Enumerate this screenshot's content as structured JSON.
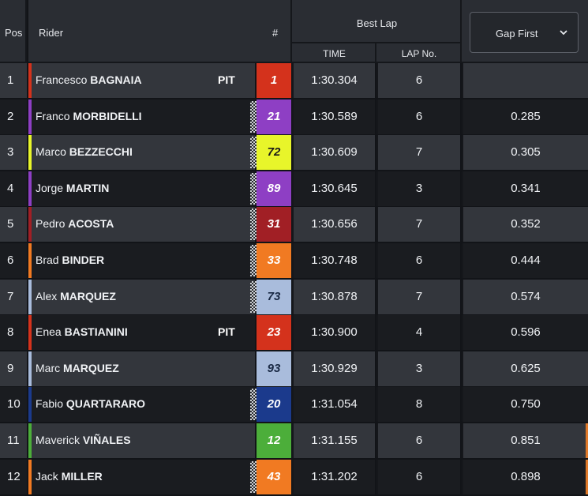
{
  "header": {
    "pos": "Pos",
    "rider": "Rider",
    "number": "#",
    "best_lap": "Best Lap",
    "time": "TIME",
    "lap_no": "LAP No.",
    "gap_selector": "Gap First"
  },
  "colors": {
    "header_bg": "#2a2d33",
    "row_odd": "#33363c",
    "row_even": "#1a1c20"
  },
  "rows": [
    {
      "pos": "1",
      "first": "Francesco",
      "last": "BAGNAIA",
      "pit": "PIT",
      "num": "1",
      "num_bg": "#d4321c",
      "num_fg": "#ffffff",
      "stripe": "#d4321c",
      "flag": false,
      "time": "1:30.304",
      "lap": "6",
      "gap": ""
    },
    {
      "pos": "2",
      "first": "Franco",
      "last": "MORBIDELLI",
      "pit": "",
      "num": "21",
      "num_bg": "#8e3fc4",
      "num_fg": "#ffffff",
      "stripe": "#8e3fc4",
      "flag": true,
      "time": "1:30.589",
      "lap": "6",
      "gap": "0.285"
    },
    {
      "pos": "3",
      "first": "Marco",
      "last": "BEZZECCHI",
      "pit": "",
      "num": "72",
      "num_bg": "#e8f52a",
      "num_fg": "#1a1a1a",
      "stripe": "#e8f52a",
      "flag": true,
      "time": "1:30.609",
      "lap": "7",
      "gap": "0.305"
    },
    {
      "pos": "4",
      "first": "Jorge",
      "last": "MARTIN",
      "pit": "",
      "num": "89",
      "num_bg": "#8e3fc4",
      "num_fg": "#ffffff",
      "stripe": "#8e3fc4",
      "flag": true,
      "time": "1:30.645",
      "lap": "3",
      "gap": "0.341"
    },
    {
      "pos": "5",
      "first": "Pedro",
      "last": "ACOSTA",
      "pit": "",
      "num": "31",
      "num_bg": "#a11f25",
      "num_fg": "#ffffff",
      "stripe": "#a11f25",
      "flag": true,
      "time": "1:30.656",
      "lap": "7",
      "gap": "0.352"
    },
    {
      "pos": "6",
      "first": "Brad",
      "last": "BINDER",
      "pit": "",
      "num": "33",
      "num_bg": "#f17a22",
      "num_fg": "#ffffff",
      "stripe": "#f17a22",
      "flag": true,
      "time": "1:30.748",
      "lap": "6",
      "gap": "0.444"
    },
    {
      "pos": "7",
      "first": "Alex",
      "last": "MARQUEZ",
      "pit": "",
      "num": "73",
      "num_bg": "#a9bcdc",
      "num_fg": "#1a2a45",
      "stripe": "#a9bcdc",
      "flag": true,
      "time": "1:30.878",
      "lap": "7",
      "gap": "0.574"
    },
    {
      "pos": "8",
      "first": "Enea",
      "last": "BASTIANINI",
      "pit": "PIT",
      "num": "23",
      "num_bg": "#d4321c",
      "num_fg": "#ffffff",
      "stripe": "#d4321c",
      "flag": false,
      "time": "1:30.900",
      "lap": "4",
      "gap": "0.596"
    },
    {
      "pos": "9",
      "first": "Marc",
      "last": "MARQUEZ",
      "pit": "",
      "num": "93",
      "num_bg": "#a9bcdc",
      "num_fg": "#1a2a45",
      "stripe": "#a9bcdc",
      "flag": false,
      "time": "1:30.929",
      "lap": "3",
      "gap": "0.625"
    },
    {
      "pos": "10",
      "first": "Fabio",
      "last": "QUARTARARO",
      "pit": "",
      "num": "20",
      "num_bg": "#1b3a8c",
      "num_fg": "#ffffff",
      "stripe": "#1b3a8c",
      "flag": true,
      "time": "1:31.054",
      "lap": "8",
      "gap": "0.750"
    },
    {
      "pos": "11",
      "first": "Maverick",
      "last": "VIÑALES",
      "pit": "",
      "num": "12",
      "num_bg": "#4cae3a",
      "num_fg": "#ffffff",
      "stripe": "#4cae3a",
      "flag": false,
      "time": "1:31.155",
      "lap": "6",
      "gap": "0.851"
    },
    {
      "pos": "12",
      "first": "Jack",
      "last": "MILLER",
      "pit": "",
      "num": "43",
      "num_bg": "#f17a22",
      "num_fg": "#ffffff",
      "stripe": "#f17a22",
      "flag": true,
      "time": "1:31.202",
      "lap": "6",
      "gap": "0.898"
    }
  ]
}
